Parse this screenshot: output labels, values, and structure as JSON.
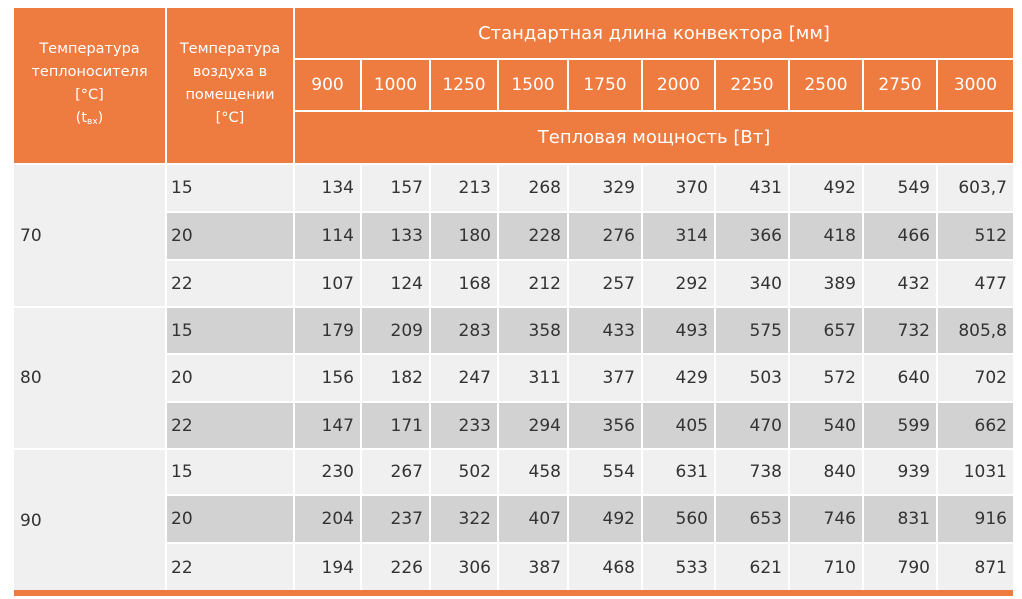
{
  "table": {
    "header": {
      "col1": [
        "Температура",
        "теплоносителя",
        "[°C]"
      ],
      "col1_sym": "t",
      "col1_sub": "вх",
      "col2": [
        "Температура",
        "воздуха в",
        "помещении",
        "[°C]"
      ],
      "length_title": "Стандартная длина конвектора [мм]",
      "power_title": "Тепловая мощность [Вт]",
      "lengths": [
        "900",
        "1000",
        "1250",
        "1500",
        "1750",
        "2000",
        "2250",
        "2500",
        "2750",
        "3000"
      ]
    },
    "groups": [
      {
        "supply_temp": "70",
        "rows": [
          {
            "air_temp": "15",
            "values": [
              "134",
              "157",
              "213",
              "268",
              "329",
              "370",
              "431",
              "492",
              "549",
              "603,7"
            ]
          },
          {
            "air_temp": "20",
            "values": [
              "114",
              "133",
              "180",
              "228",
              "276",
              "314",
              "366",
              "418",
              "466",
              "512"
            ]
          },
          {
            "air_temp": "22",
            "values": [
              "107",
              "124",
              "168",
              "212",
              "257",
              "292",
              "340",
              "389",
              "432",
              "477"
            ]
          }
        ]
      },
      {
        "supply_temp": "80",
        "rows": [
          {
            "air_temp": "15",
            "values": [
              "179",
              "209",
              "283",
              "358",
              "433",
              "493",
              "575",
              "657",
              "732",
              "805,8"
            ]
          },
          {
            "air_temp": "20",
            "values": [
              "156",
              "182",
              "247",
              "311",
              "377",
              "429",
              "503",
              "572",
              "640",
              "702"
            ]
          },
          {
            "air_temp": "22",
            "values": [
              "147",
              "171",
              "233",
              "294",
              "356",
              "405",
              "470",
              "540",
              "599",
              "662"
            ]
          }
        ]
      },
      {
        "supply_temp": "90",
        "rows": [
          {
            "air_temp": "15",
            "values": [
              "230",
              "267",
              "502",
              "458",
              "554",
              "631",
              "738",
              "840",
              "939",
              "1031"
            ]
          },
          {
            "air_temp": "20",
            "values": [
              "204",
              "237",
              "322",
              "407",
              "492",
              "560",
              "653",
              "746",
              "831",
              "916"
            ]
          },
          {
            "air_temp": "22",
            "values": [
              "194",
              "226",
              "306",
              "387",
              "468",
              "533",
              "621",
              "710",
              "790",
              "871"
            ]
          }
        ]
      }
    ],
    "colors": {
      "header": "#ee7b3f",
      "grey_row": "#d2d2d2",
      "light_row": "#f0f0f0"
    }
  }
}
